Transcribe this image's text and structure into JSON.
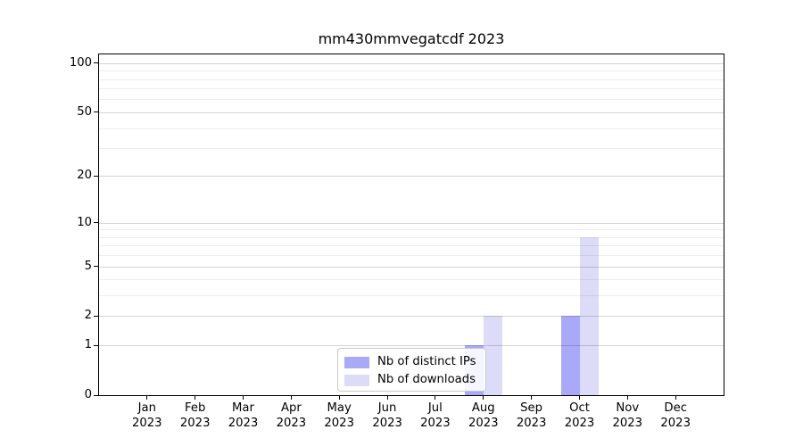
{
  "chart_data": {
    "type": "bar",
    "title": "mm430mmvegatcdf 2023",
    "categories": [
      "Jan",
      "Feb",
      "Mar",
      "Apr",
      "May",
      "Jun",
      "Jul",
      "Aug",
      "Sep",
      "Oct",
      "Nov",
      "Dec"
    ],
    "category_year": "2023",
    "series": [
      {
        "name": "Nb of distinct IPs",
        "color": "#a9a9f7",
        "values": [
          0,
          0,
          0,
          0,
          0,
          0,
          0,
          1,
          0,
          2,
          0,
          0
        ]
      },
      {
        "name": "Nb of downloads",
        "color": "#dcdcf8",
        "values": [
          0,
          0,
          0,
          0,
          0,
          0,
          0,
          2,
          0,
          8,
          0,
          0
        ]
      }
    ],
    "y_axis": {
      "scale": "log10(1+v)",
      "min": 0,
      "max": 113,
      "major_ticks": [
        0,
        1,
        2,
        5,
        10,
        20,
        50,
        100
      ],
      "minor_ticks": [
        3,
        4,
        6,
        7,
        8,
        9,
        30,
        40,
        60,
        70,
        80,
        90
      ]
    },
    "x_axis": {
      "tick_label_format": "month + year, two lines"
    },
    "legend": {
      "position": "lower center"
    },
    "grid": {
      "major_color": "rgba(0,0,0,0.17)",
      "minor_color": "rgba(0,0,0,0.07)"
    },
    "colors": {
      "spine": "#000000",
      "text": "#000000",
      "background": "#ffffff"
    }
  }
}
